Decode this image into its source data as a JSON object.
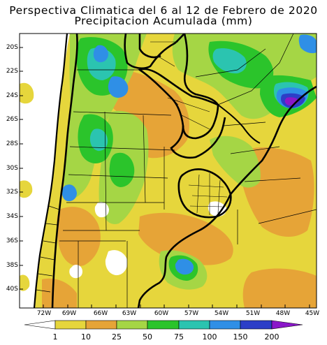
{
  "header": {
    "title_line1": "Perspectiva Climatica del 6 al 12 de Febrero de 2020",
    "title_line2": "Precipitacion Acumulada (mm)"
  },
  "axes": {
    "y_ticks": [
      "20S",
      "22S",
      "24S",
      "26S",
      "28S",
      "30S",
      "32S",
      "34S",
      "36S",
      "38S",
      "40S"
    ],
    "x_ticks": [
      "72W",
      "69W",
      "66W",
      "63W",
      "60W",
      "57W",
      "54W",
      "51W",
      "48W",
      "45W"
    ]
  },
  "legend": {
    "labels": [
      "1",
      "10",
      "25",
      "50",
      "75",
      "100",
      "150",
      "200"
    ],
    "colors": [
      "#ffffff",
      "#e6d63c",
      "#e6a437",
      "#a5d645",
      "#2bc42b",
      "#2bc4b0",
      "#2f8fe6",
      "#2c3ec7",
      "#8a17c9"
    ]
  }
}
